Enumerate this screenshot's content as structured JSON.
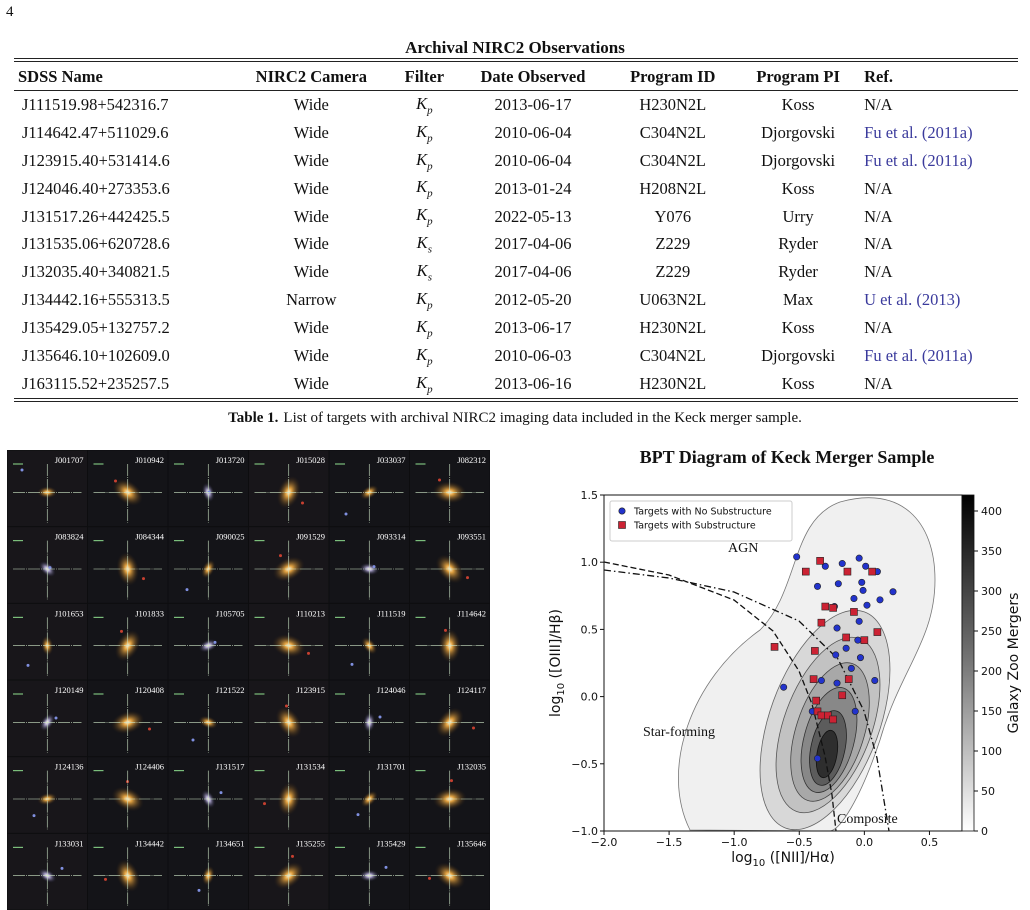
{
  "page_number": "4",
  "table": {
    "title": "Archival NIRC2 Observations",
    "headers": [
      "SDSS Name",
      "NIRC2 Camera",
      "Filter",
      "Date Observed",
      "Program ID",
      "Program PI",
      "Ref."
    ],
    "rows": [
      [
        "J111519.98+542316.7",
        "Wide",
        {
          "base": "K",
          "sub": "p"
        },
        "2013-06-17",
        "H230N2L",
        "Koss",
        "N/A"
      ],
      [
        "J114642.47+511029.6",
        "Wide",
        {
          "base": "K",
          "sub": "p"
        },
        "2010-06-04",
        "C304N2L",
        "Djorgovski",
        "Fu et al. (2011a)"
      ],
      [
        "J123915.40+531414.6",
        "Wide",
        {
          "base": "K",
          "sub": "p"
        },
        "2010-06-04",
        "C304N2L",
        "Djorgovski",
        "Fu et al. (2011a)"
      ],
      [
        "J124046.40+273353.6",
        "Wide",
        {
          "base": "K",
          "sub": "p"
        },
        "2013-01-24",
        "H208N2L",
        "Koss",
        "N/A"
      ],
      [
        "J131517.26+442425.5",
        "Wide",
        {
          "base": "K",
          "sub": "p"
        },
        "2022-05-13",
        "Y076",
        "Urry",
        "N/A"
      ],
      [
        "J131535.06+620728.6",
        "Wide",
        {
          "base": "K",
          "sub": "s"
        },
        "2017-04-06",
        "Z229",
        "Ryder",
        "N/A"
      ],
      [
        "J132035.40+340821.5",
        "Wide",
        {
          "base": "K",
          "sub": "s"
        },
        "2017-04-06",
        "Z229",
        "Ryder",
        "N/A"
      ],
      [
        "J134442.16+555313.5",
        "Narrow",
        {
          "base": "K",
          "sub": "p"
        },
        "2012-05-20",
        "U063N2L",
        "Max",
        "U et al. (2013)"
      ],
      [
        "J135429.05+132757.2",
        "Wide",
        {
          "base": "K",
          "sub": "p"
        },
        "2013-06-17",
        "H230N2L",
        "Koss",
        "N/A"
      ],
      [
        "J135646.10+102609.0",
        "Wide",
        {
          "base": "K",
          "sub": "p"
        },
        "2010-06-03",
        "C304N2L",
        "Djorgovski",
        "Fu et al. (2011a)"
      ],
      [
        "J163115.52+235257.5",
        "Wide",
        {
          "base": "K",
          "sub": "p"
        },
        "2013-06-16",
        "H230N2L",
        "Koss",
        "N/A"
      ]
    ]
  },
  "caption": {
    "label": "Table 1.",
    "text": "List of targets with archival NIRC2 imaging data included in the Keck merger sample."
  },
  "mosaic": {
    "labels": [
      "J001707",
      "J010942",
      "J013720",
      "J015028",
      "J033037",
      "J082312",
      "J083824",
      "J084344",
      "J090025",
      "J091529",
      "J093314",
      "J093551",
      "J101653",
      "J101833",
      "J105705",
      "J110213",
      "J111519",
      "J114642",
      "J120149",
      "J120408",
      "J121522",
      "J123915",
      "J124046",
      "J124117",
      "J124136",
      "J124406",
      "J131517",
      "J131534",
      "J131701",
      "J132035",
      "J133031",
      "J134442",
      "J134651",
      "J135255",
      "J135429",
      "J135646"
    ]
  },
  "chart_data": {
    "type": "scatter",
    "title": "BPT Diagram of Keck Merger Sample",
    "x_label": {
      "base": "log",
      "sub": "10",
      "tail": " ([NII]/Hα)"
    },
    "y_label": {
      "base": "log",
      "sub": "10",
      "tail": " ([OIII]/Hβ)"
    },
    "xlim": [
      -2.0,
      0.75
    ],
    "ylim": [
      -1.0,
      1.5
    ],
    "xticks": [
      {
        "value": -2.0,
        "label": "−2.0"
      },
      {
        "value": -1.5,
        "label": "−1.5"
      },
      {
        "value": -1.0,
        "label": "−1.0"
      },
      {
        "value": -0.5,
        "label": "−0.5"
      },
      {
        "value": 0.0,
        "label": "0.0"
      },
      0.5
    ],
    "yticks": [
      {
        "value": -1.0,
        "label": "−1.0"
      },
      {
        "value": -0.5,
        "label": "−0.5"
      },
      {
        "value": 0.0,
        "label": "0.0"
      },
      0.5,
      {
        "value": 1.0,
        "label": "1.0"
      },
      1.5
    ],
    "legend": "upper left",
    "annotations": [
      "AGN",
      "Star-forming",
      "Composite"
    ],
    "colorbar": {
      "label": "Galaxy Zoo Mergers",
      "lim": [
        0,
        420
      ],
      "ticks": [
        0,
        50,
        100,
        150,
        200,
        250,
        300,
        350,
        400
      ]
    },
    "series": [
      {
        "name": "Targets with No Substructure",
        "color": "#2233cc",
        "marker": "circle",
        "x": [
          -0.52,
          -0.3,
          -0.17,
          -0.04,
          0.01,
          0.1,
          -0.36,
          -0.2,
          -0.02,
          -0.01,
          0.22,
          -0.08,
          0.12,
          -0.23,
          0.02,
          -0.04,
          -0.21,
          -0.05,
          -0.14,
          -0.22,
          -0.62,
          -0.03,
          -0.1,
          -0.33,
          0.08,
          -0.21,
          -0.4,
          -0.07,
          -0.36
        ],
        "values": [
          1.04,
          0.97,
          0.99,
          1.03,
          0.97,
          0.93,
          0.82,
          0.84,
          0.85,
          0.79,
          0.78,
          0.73,
          0.72,
          0.67,
          0.68,
          0.56,
          0.51,
          0.42,
          0.36,
          0.31,
          0.07,
          0.29,
          0.21,
          0.12,
          0.12,
          0.1,
          -0.11,
          -0.11,
          -0.46
        ]
      },
      {
        "name": "Targets with Substructure",
        "color": "#cc2233",
        "marker": "square",
        "x": [
          -0.34,
          -0.45,
          -0.13,
          0.06,
          -0.3,
          -0.24,
          -0.08,
          -0.33,
          -0.14,
          0.1,
          -0.69,
          -0.38,
          0.0,
          -0.39,
          -0.12,
          -0.17,
          -0.37,
          -0.36,
          -0.33,
          -0.28,
          -0.24
        ],
        "values": [
          1.01,
          0.93,
          0.93,
          0.93,
          0.67,
          0.66,
          0.63,
          0.55,
          0.44,
          0.48,
          0.37,
          0.34,
          0.42,
          0.13,
          0.13,
          0.01,
          -0.03,
          -0.11,
          -0.14,
          -0.14,
          -0.17
        ]
      }
    ]
  }
}
